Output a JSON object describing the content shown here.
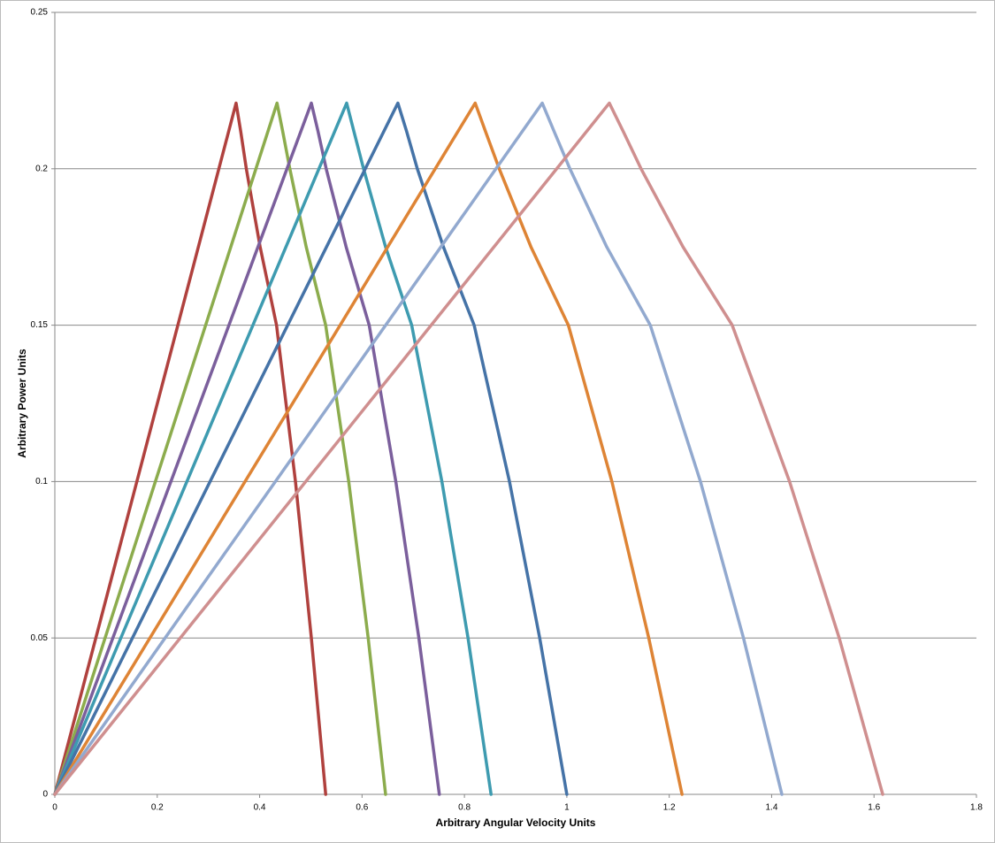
{
  "chart_data": {
    "type": "line",
    "x_label": "Arbitrary Angular Velocity Units",
    "y_label": "Arbitrary Power Units",
    "xlim": [
      0,
      1.8
    ],
    "xticks": [
      0,
      0.2,
      0.4,
      0.6,
      0.8,
      1,
      1.2,
      1.4,
      1.6,
      1.8
    ],
    "ylim": [
      0,
      0.25
    ],
    "yticks": [
      0,
      0.05,
      0.1,
      0.15,
      0.2,
      0.25
    ],
    "grid": true,
    "series": [
      {
        "color": "#b0413e",
        "x": [
          0,
          0.354,
          0.363,
          0.374,
          0.401,
          0.433,
          0.47,
          0.501,
          0.529
        ],
        "values": [
          0,
          0.221,
          0.212,
          0.2,
          0.175,
          0.15,
          0.1,
          0.05,
          0
        ]
      },
      {
        "color": "#8cac4d",
        "x": [
          0,
          0.434,
          0.445,
          0.459,
          0.491,
          0.529,
          0.574,
          0.612,
          0.646
        ],
        "values": [
          0,
          0.221,
          0.212,
          0.2,
          0.175,
          0.15,
          0.1,
          0.05,
          0
        ]
      },
      {
        "color": "#7b5f9c",
        "x": [
          0,
          0.501,
          0.514,
          0.53,
          0.569,
          0.614,
          0.666,
          0.711,
          0.751
        ],
        "values": [
          0,
          0.221,
          0.212,
          0.2,
          0.175,
          0.15,
          0.1,
          0.05,
          0
        ]
      },
      {
        "color": "#3e9bb0",
        "x": [
          0,
          0.57,
          0.584,
          0.603,
          0.646,
          0.697,
          0.756,
          0.807,
          0.852
        ],
        "values": [
          0,
          0.221,
          0.212,
          0.2,
          0.175,
          0.15,
          0.1,
          0.05,
          0
        ]
      },
      {
        "color": "#4573a7",
        "x": [
          0,
          0.67,
          0.687,
          0.708,
          0.759,
          0.819,
          0.888,
          0.947,
          1.0
        ],
        "values": [
          0,
          0.221,
          0.212,
          0.2,
          0.175,
          0.15,
          0.1,
          0.05,
          0
        ]
      },
      {
        "color": "#de8435",
        "x": [
          0,
          0.821,
          0.841,
          0.868,
          0.93,
          1.003,
          1.088,
          1.16,
          1.225
        ],
        "values": [
          0,
          0.221,
          0.212,
          0.2,
          0.175,
          0.15,
          0.1,
          0.05,
          0
        ]
      },
      {
        "color": "#92a9cf",
        "x": [
          0,
          0.952,
          0.975,
          1.006,
          1.078,
          1.163,
          1.261,
          1.345,
          1.42
        ],
        "values": [
          0,
          0.221,
          0.212,
          0.2,
          0.175,
          0.15,
          0.1,
          0.05,
          0
        ]
      },
      {
        "color": "#cf8f8f",
        "x": [
          0,
          1.083,
          1.11,
          1.145,
          1.227,
          1.323,
          1.435,
          1.532,
          1.617
        ],
        "values": [
          0,
          0.221,
          0.212,
          0.2,
          0.175,
          0.15,
          0.1,
          0.05,
          0
        ]
      }
    ]
  }
}
